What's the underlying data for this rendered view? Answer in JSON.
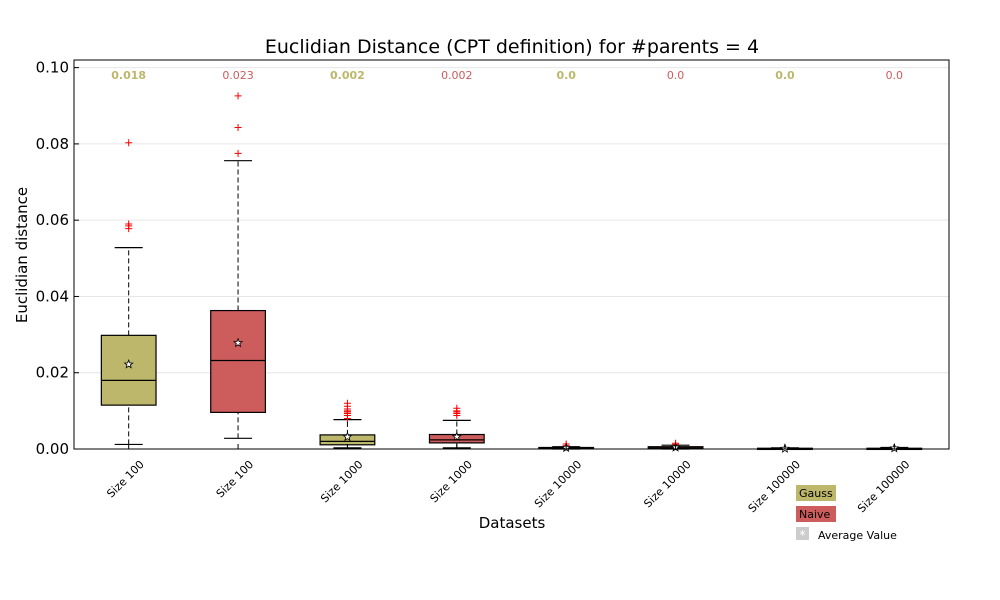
{
  "chart_data": {
    "type": "boxplot",
    "title": "Euclidian Distance (CPT definition) for #parents = 4",
    "xlabel": "Datasets",
    "ylabel": "Euclidian distance",
    "ylim": [
      0.0,
      0.102
    ],
    "yticks": [
      "0.00",
      "0.02",
      "0.04",
      "0.06",
      "0.08",
      "0.10"
    ],
    "grid": true,
    "colors": {
      "Gauss": "#bdb76b",
      "Naive": "#cd5c5c",
      "outlier": "#ff0000",
      "average_marker": "#cccccc"
    },
    "legend": {
      "placement": "bottom-right",
      "entries": [
        {
          "label": "Gauss",
          "color": "#bdb76b"
        },
        {
          "label": "Naive",
          "color": "#cd5c5c"
        },
        {
          "label": "Average Value",
          "color": "#cccccc",
          "symbol": "*"
        }
      ]
    },
    "boxes": [
      {
        "category": "Size 100",
        "series": "Gauss",
        "whisker_low": 0.0012,
        "q1": 0.0115,
        "median": 0.018,
        "q3": 0.0298,
        "whisker_high": 0.0528,
        "mean": 0.0222,
        "outliers": [
          0.0578,
          0.0585,
          0.059,
          0.0803
        ],
        "median_label": "0.018"
      },
      {
        "category": "Size 100",
        "series": "Naive",
        "whisker_low": 0.0028,
        "q1": 0.0096,
        "median": 0.0232,
        "q3": 0.0363,
        "whisker_high": 0.0756,
        "mean": 0.0278,
        "outliers": [
          0.0775,
          0.0843,
          0.0926
        ],
        "median_label": "0.023"
      },
      {
        "category": "Size 1000",
        "series": "Gauss",
        "whisker_low": 0.0003,
        "q1": 0.0011,
        "median": 0.002,
        "q3": 0.0037,
        "whisker_high": 0.0077,
        "mean": 0.0032,
        "outliers": [
          0.008,
          0.0088,
          0.0093,
          0.0097,
          0.01,
          0.0105,
          0.0112,
          0.012
        ],
        "median_label": "0.002"
      },
      {
        "category": "Size 1000",
        "series": "Naive",
        "whisker_low": 0.0003,
        "q1": 0.0016,
        "median": 0.0024,
        "q3": 0.0038,
        "whisker_high": 0.0075,
        "mean": 0.0032,
        "outliers": [
          0.0088,
          0.0093,
          0.0097,
          0.01,
          0.0107
        ],
        "median_label": "0.002"
      },
      {
        "category": "Size 10000",
        "series": "Gauss",
        "whisker_low": 0.0,
        "q1": 0.0001,
        "median": 0.0002,
        "q3": 0.0004,
        "whisker_high": 0.0006,
        "mean": 0.0003,
        "outliers": [
          0.0009,
          0.0013
        ],
        "median_label": "0.0"
      },
      {
        "category": "Size 10000",
        "series": "Naive",
        "whisker_low": 0.0,
        "q1": 0.0002,
        "median": 0.0003,
        "q3": 0.0006,
        "whisker_high": 0.001,
        "mean": 0.0004,
        "outliers": [
          0.0012,
          0.0015
        ],
        "median_label": "0.0"
      },
      {
        "category": "Size 100000",
        "series": "Gauss",
        "whisker_low": 0.0,
        "q1": 0.0,
        "median": 0.0001,
        "q3": 0.0002,
        "whisker_high": 0.0003,
        "mean": 0.0001,
        "outliers": [],
        "median_label": "0.0"
      },
      {
        "category": "Size 100000",
        "series": "Naive",
        "whisker_low": 0.0,
        "q1": 0.0001,
        "median": 0.0001,
        "q3": 0.0002,
        "whisker_high": 0.0004,
        "mean": 0.0002,
        "outliers": [],
        "median_label": "0.0"
      }
    ]
  }
}
